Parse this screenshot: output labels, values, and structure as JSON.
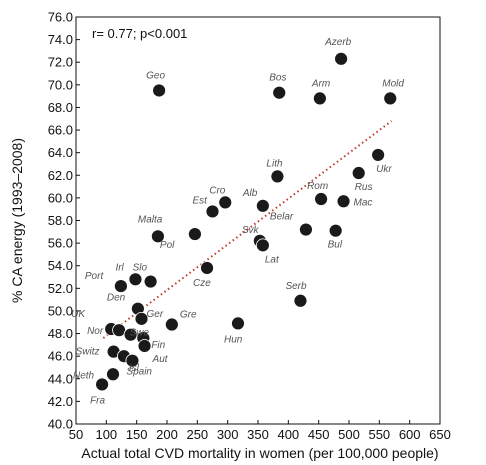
{
  "chart_data": {
    "type": "scatter",
    "xlabel": "Actual total CVD  mortality in women (per 100,000 people)",
    "ylabel": "% CA energy (1993–2008)",
    "xlim": [
      50,
      650
    ],
    "ylim": [
      40,
      76
    ],
    "x_ticks": [
      50,
      100,
      150,
      200,
      250,
      300,
      350,
      400,
      450,
      500,
      550,
      600,
      650
    ],
    "y_ticks": [
      40.0,
      42.0,
      44.0,
      46.0,
      48.0,
      50.0,
      52.0,
      54.0,
      56.0,
      58.0,
      60.0,
      62.0,
      64.0,
      66.0,
      68.0,
      70.0,
      72.0,
      74.0,
      76.0
    ],
    "annotation": "r= 0.77; p<0.001",
    "trendline": {
      "style": "dotted",
      "color": "#c0392b",
      "x": [
        95,
        570
      ],
      "y": [
        47.6,
        66.8
      ]
    },
    "marker_color": "#1a1a1a",
    "points": [
      {
        "label": "Azerb",
        "x": 487,
        "y": 72.3
      },
      {
        "label": "Geo",
        "x": 187,
        "y": 69.5
      },
      {
        "label": "Bos",
        "x": 385,
        "y": 69.3
      },
      {
        "label": "Arm",
        "x": 452,
        "y": 68.8
      },
      {
        "label": "Mold",
        "x": 568,
        "y": 68.8
      },
      {
        "label": "Ukr",
        "x": 548,
        "y": 63.8
      },
      {
        "label": "Rus",
        "x": 516,
        "y": 62.2
      },
      {
        "label": "Lith",
        "x": 382,
        "y": 61.9
      },
      {
        "label": "Rom",
        "x": 454,
        "y": 59.9
      },
      {
        "label": "Mac",
        "x": 491,
        "y": 59.7
      },
      {
        "label": "Cro",
        "x": 296,
        "y": 59.6
      },
      {
        "label": "Alb",
        "x": 358,
        "y": 59.3
      },
      {
        "label": "Est",
        "x": 275,
        "y": 58.8
      },
      {
        "label": "Belar",
        "x": 429,
        "y": 57.2
      },
      {
        "label": "Bul",
        "x": 478,
        "y": 57.1
      },
      {
        "label": "Pol",
        "x": 246,
        "y": 56.8
      },
      {
        "label": "Malta",
        "x": 185,
        "y": 56.6
      },
      {
        "label": "Svk",
        "x": 353,
        "y": 56.2
      },
      {
        "label": "Lat",
        "x": 358,
        "y": 55.8
      },
      {
        "label": "Cze",
        "x": 266,
        "y": 53.8
      },
      {
        "label": "Irl",
        "x": 148,
        "y": 52.8
      },
      {
        "label": "Slo",
        "x": 173,
        "y": 52.6
      },
      {
        "label": "Port",
        "x": 124,
        "y": 52.2
      },
      {
        "label": "Serb",
        "x": 420,
        "y": 50.9
      },
      {
        "label": "Den",
        "x": 152,
        "y": 50.2
      },
      {
        "label": "Ger",
        "x": 158,
        "y": 49.3
      },
      {
        "label": "Gre",
        "x": 208,
        "y": 48.8
      },
      {
        "label": "Hun",
        "x": 317,
        "y": 48.9
      },
      {
        "label": "UK",
        "x": 108,
        "y": 48.4
      },
      {
        "label": "Nor",
        "x": 121,
        "y": 48.3
      },
      {
        "label": "Swe",
        "x": 140,
        "y": 47.9
      },
      {
        "label": "Fin",
        "x": 161,
        "y": 47.6
      },
      {
        "label": "Switz",
        "x": 112,
        "y": 46.4
      },
      {
        "label": "Isl",
        "x": 129,
        "y": 46.0
      },
      {
        "label": "Aut",
        "x": 163,
        "y": 46.9
      },
      {
        "label": "Neth",
        "x": 111,
        "y": 44.4
      },
      {
        "label": "Spain",
        "x": 143,
        "y": 45.6
      },
      {
        "label": "Fra",
        "x": 93,
        "y": 43.5
      }
    ]
  }
}
